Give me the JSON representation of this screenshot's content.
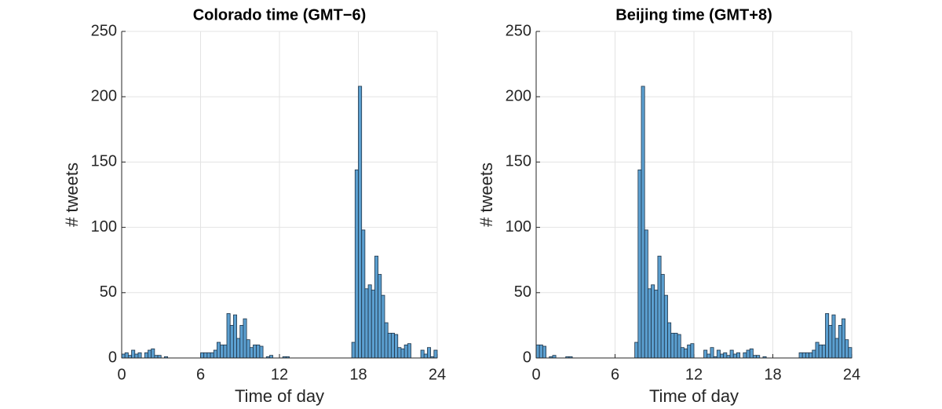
{
  "chart_data": [
    {
      "type": "histogram",
      "title": "Colorado time (GMT−6)",
      "xlabel": "Time of day",
      "ylabel": "# tweets",
      "color": "#5b9fd0",
      "edge_color": "#1f3346",
      "grid": true,
      "bins": [
        0,
        0.25,
        0.5,
        0.75,
        1,
        1.25,
        1.5,
        1.75,
        2,
        2.25,
        2.5,
        2.75,
        3,
        3.25,
        3.5,
        3.75,
        4,
        4.25,
        4.5,
        4.75,
        5,
        5.25,
        5.5,
        5.75,
        6,
        6.25,
        6.5,
        6.75,
        7,
        7.25,
        7.5,
        7.75,
        8,
        8.25,
        8.5,
        8.75,
        9,
        9.25,
        9.5,
        9.75,
        10,
        10.25,
        10.5,
        10.75,
        11,
        11.25,
        11.5,
        11.75,
        12,
        12.25,
        12.5,
        12.75,
        13,
        13.25,
        13.5,
        13.75,
        14,
        14.25,
        14.5,
        14.75,
        15,
        15.25,
        15.5,
        15.75,
        16,
        16.25,
        16.5,
        16.75,
        17,
        17.25,
        17.5,
        17.75,
        18,
        18.25,
        18.5,
        18.75,
        19,
        19.25,
        19.5,
        19.75,
        20,
        20.25,
        20.5,
        20.75,
        21,
        21.25,
        21.5,
        21.75,
        22,
        22.25,
        22.5,
        22.75,
        23,
        23.25,
        23.5,
        23.75,
        24
      ],
      "values": [
        3,
        4,
        2,
        6,
        3,
        4,
        0,
        4,
        6,
        7,
        2,
        2,
        0,
        1,
        0,
        0,
        0,
        0,
        0,
        0,
        0,
        0,
        0,
        0,
        4,
        4,
        4,
        4,
        6,
        12,
        10,
        10,
        34,
        25,
        33,
        15,
        25,
        30,
        14,
        8,
        10,
        10,
        9,
        0,
        1,
        2,
        0,
        0,
        0,
        1,
        1,
        0,
        0,
        0,
        0,
        0,
        0,
        0,
        0,
        0,
        0,
        0,
        0,
        0,
        0,
        0,
        0,
        0,
        0,
        0,
        12,
        144,
        208,
        98,
        53,
        56,
        52,
        78,
        64,
        48,
        27,
        19,
        19,
        18,
        8,
        7,
        10,
        11,
        0,
        0,
        0,
        6,
        3,
        8,
        1,
        6
      ],
      "xlim": [
        0,
        24
      ],
      "ylim": [
        0,
        250
      ],
      "xticks": [
        0,
        6,
        12,
        18,
        24
      ],
      "yticks": [
        0,
        50,
        100,
        150,
        200,
        250
      ]
    },
    {
      "type": "histogram",
      "title": "Beijing time (GMT+8)",
      "xlabel": "Time of day",
      "ylabel": "# tweets",
      "color": "#5b9fd0",
      "edge_color": "#1f3346",
      "grid": true,
      "bins": [
        0,
        0.25,
        0.5,
        0.75,
        1,
        1.25,
        1.5,
        1.75,
        2,
        2.25,
        2.5,
        2.75,
        3,
        3.25,
        3.5,
        3.75,
        4,
        4.25,
        4.5,
        4.75,
        5,
        5.25,
        5.5,
        5.75,
        6,
        6.25,
        6.5,
        6.75,
        7,
        7.25,
        7.5,
        7.75,
        8,
        8.25,
        8.5,
        8.75,
        9,
        9.25,
        9.5,
        9.75,
        10,
        10.25,
        10.5,
        10.75,
        11,
        11.25,
        11.5,
        11.75,
        12,
        12.25,
        12.5,
        12.75,
        13,
        13.25,
        13.5,
        13.75,
        14,
        14.25,
        14.5,
        14.75,
        15,
        15.25,
        15.5,
        15.75,
        16,
        16.25,
        16.5,
        16.75,
        17,
        17.25,
        17.5,
        17.75,
        18,
        18.25,
        18.5,
        18.75,
        19,
        19.25,
        19.5,
        19.75,
        20,
        20.25,
        20.5,
        20.75,
        21,
        21.25,
        21.5,
        21.75,
        22,
        22.25,
        22.5,
        22.75,
        23,
        23.25,
        23.5,
        23.75,
        24
      ],
      "values": [
        10,
        10,
        9,
        0,
        1,
        2,
        0,
        0,
        0,
        1,
        1,
        0,
        0,
        0,
        0,
        0,
        0,
        0,
        0,
        0,
        0,
        0,
        0,
        0,
        0,
        0,
        0,
        0,
        0,
        0,
        12,
        144,
        208,
        98,
        53,
        56,
        52,
        78,
        64,
        48,
        27,
        19,
        19,
        18,
        8,
        7,
        10,
        11,
        0,
        0,
        0,
        6,
        3,
        8,
        1,
        6,
        3,
        4,
        2,
        6,
        3,
        4,
        0,
        4,
        6,
        7,
        2,
        2,
        0,
        1,
        0,
        0,
        0,
        0,
        0,
        0,
        0,
        0,
        0,
        0,
        4,
        4,
        4,
        4,
        6,
        12,
        10,
        10,
        34,
        25,
        33,
        15,
        25,
        30,
        14,
        8
      ],
      "xlim": [
        0,
        24
      ],
      "ylim": [
        0,
        250
      ],
      "xticks": [
        0,
        6,
        12,
        18,
        24
      ],
      "yticks": [
        0,
        50,
        100,
        150,
        200,
        250
      ]
    }
  ]
}
